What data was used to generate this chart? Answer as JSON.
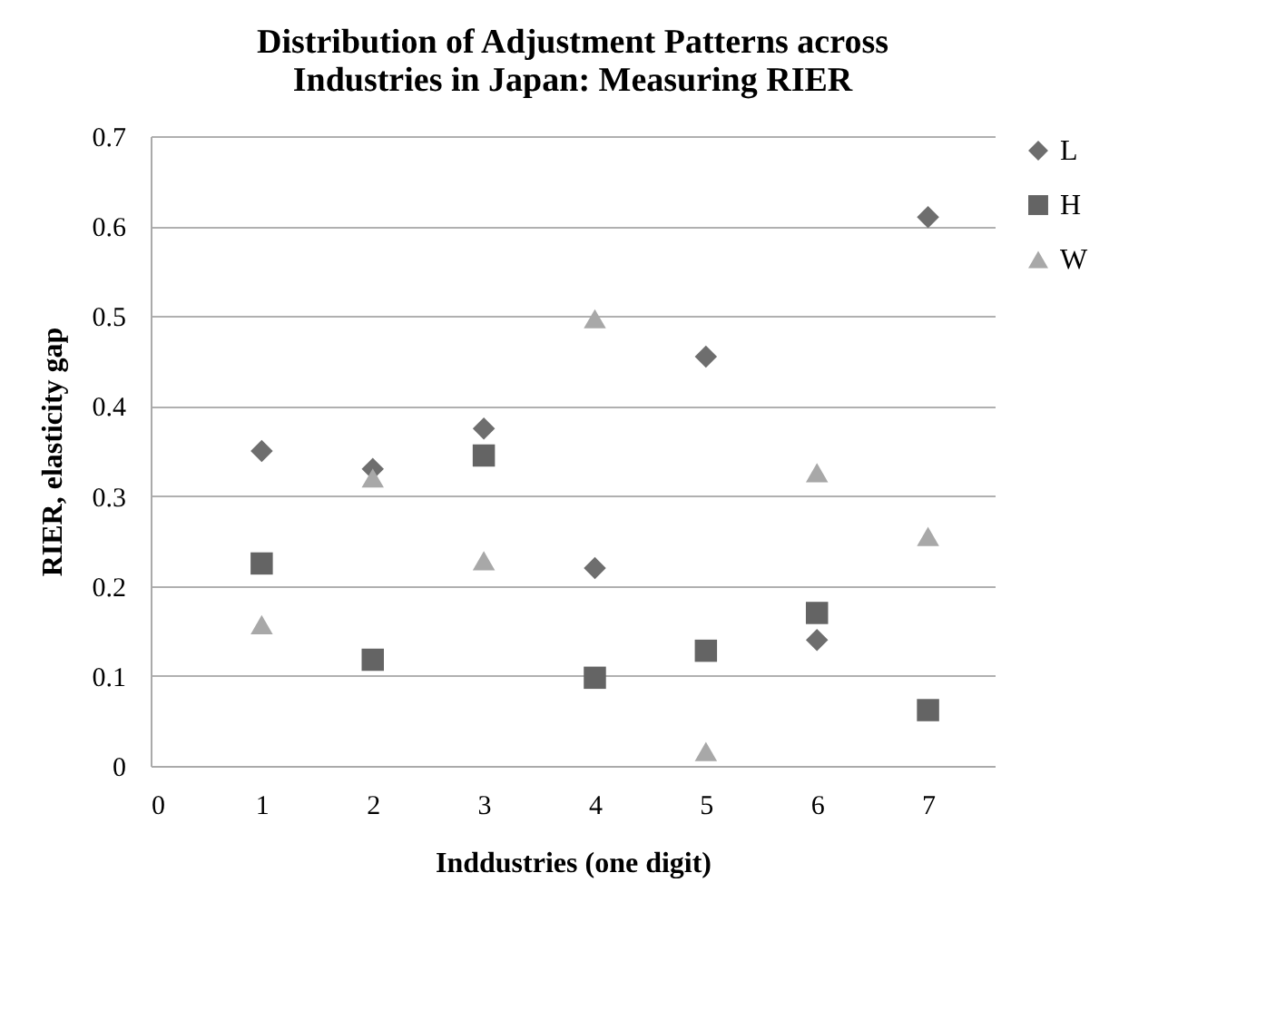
{
  "chart_data": {
    "type": "scatter",
    "title": "Distribution of Adjustment Patterns across Industries in Japan: Measuring RIER",
    "xlabel": "Inddustries (one digit)",
    "ylabel": "RIER, elasticity gap",
    "x": [
      1,
      2,
      3,
      4,
      5,
      6,
      7
    ],
    "series": [
      {
        "name": "L",
        "color": "#6e6e6e",
        "marker": "diamond",
        "values": [
          0.35,
          0.33,
          0.375,
          0.22,
          0.455,
          0.14,
          0.61
        ]
      },
      {
        "name": "H",
        "color": "#646464",
        "marker": "square",
        "values": [
          0.225,
          0.118,
          0.345,
          0.098,
          0.128,
          0.17,
          0.062
        ]
      },
      {
        "name": "W",
        "color": "#a8a8a8",
        "marker": "triangle",
        "values": [
          0.157,
          0.32,
          0.228,
          0.497,
          0.016,
          0.326,
          0.255
        ]
      }
    ],
    "xlim": [
      0,
      7.6
    ],
    "xticks": [
      0,
      1,
      2,
      3,
      4,
      5,
      6,
      7
    ],
    "ylim": [
      0,
      0.7
    ],
    "yticks": [
      0,
      0.1,
      0.2,
      0.3,
      0.4,
      0.5,
      0.6,
      0.7
    ],
    "grid": "y",
    "legend": "right"
  }
}
